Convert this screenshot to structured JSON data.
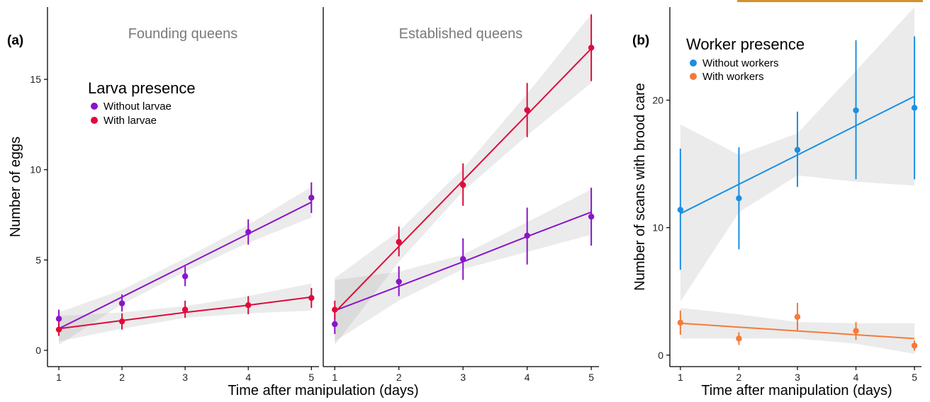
{
  "figure": {
    "accent_bar_color": "#d4912b"
  },
  "chart_data": [
    {
      "type": "line",
      "panel_label": "(a)",
      "facet_title": "Founding queens",
      "xlabel": "Time after manipulation (days)",
      "ylabel": "Number of eggs",
      "x": [
        1,
        2,
        3,
        4,
        5
      ],
      "xticks": [
        "1",
        "2",
        "3",
        "4",
        "5"
      ],
      "yticks": [
        "0",
        "5",
        "10",
        "15"
      ],
      "xlim": [
        0.82,
        5.12
      ],
      "ylim": [
        -0.9,
        19.0
      ],
      "grid": false,
      "legend": {
        "title": "Larva presence",
        "placement": "upper-left",
        "entries": [
          "Without larvae",
          "With larvae"
        ]
      },
      "series": [
        {
          "name": "Without larvae",
          "color": "#8a14c8",
          "mean": [
            1.75,
            2.6,
            4.1,
            6.55,
            8.45
          ],
          "lower": [
            1.25,
            2.15,
            3.55,
            5.85,
            7.6
          ],
          "upper": [
            2.25,
            3.1,
            4.65,
            7.25,
            9.3
          ],
          "fit": [
            1.2,
            2.95,
            4.7,
            6.45,
            8.2
          ],
          "ci_lower": [
            0.3,
            2.55,
            4.35,
            5.95,
            7.35
          ],
          "ci_upper": [
            2.1,
            3.35,
            5.1,
            6.95,
            9.05
          ]
        },
        {
          "name": "With larvae",
          "color": "#de0b3c",
          "mean": [
            1.15,
            1.6,
            2.25,
            2.5,
            2.9
          ],
          "lower": [
            0.8,
            1.15,
            1.8,
            2.0,
            2.35
          ],
          "upper": [
            1.55,
            2.05,
            2.75,
            3.0,
            3.45
          ],
          "fit": [
            1.2,
            1.65,
            2.1,
            2.5,
            2.95
          ],
          "ci_lower": [
            0.5,
            1.2,
            1.8,
            2.05,
            2.2
          ],
          "ci_upper": [
            1.9,
            2.1,
            2.45,
            3.0,
            3.7
          ]
        }
      ]
    },
    {
      "type": "line",
      "facet_title": "Established queens",
      "x": [
        1,
        2,
        3,
        4,
        5
      ],
      "xticks": [
        "1",
        "2",
        "3",
        "4",
        "5"
      ],
      "xlim": [
        0.82,
        5.12
      ],
      "ylim": [
        -0.9,
        19.0
      ],
      "grid": false,
      "series": [
        {
          "name": "Without larvae",
          "color": "#8a14c8",
          "mean": [
            1.45,
            3.8,
            5.05,
            6.35,
            7.4
          ],
          "lower": [
            0.9,
            3.0,
            3.9,
            4.75,
            5.8
          ],
          "upper": [
            2.0,
            4.65,
            6.2,
            7.9,
            9.0
          ],
          "fit": [
            2.2,
            3.55,
            4.9,
            6.3,
            7.65
          ],
          "ci_lower": [
            0.5,
            2.75,
            4.5,
            5.45,
            6.4
          ],
          "ci_upper": [
            3.9,
            4.35,
            5.3,
            7.1,
            8.9
          ]
        },
        {
          "name": "With larvae",
          "color": "#de0b3c",
          "mean": [
            2.25,
            6.0,
            9.15,
            13.3,
            16.75
          ],
          "lower": [
            1.75,
            5.2,
            8.0,
            11.8,
            14.9
          ],
          "upper": [
            2.75,
            6.85,
            10.35,
            14.8,
            18.6
          ],
          "fit": [
            2.1,
            5.75,
            9.4,
            13.05,
            16.7
          ],
          "ci_lower": [
            0.3,
            4.9,
            8.8,
            11.9,
            14.8
          ],
          "ci_upper": [
            4.0,
            6.6,
            10.05,
            14.2,
            18.6
          ]
        }
      ]
    },
    {
      "type": "line",
      "panel_label": "(b)",
      "xlabel": "Time after manipulation (days)",
      "ylabel": "Number of scans with brood care",
      "x": [
        1,
        2,
        3,
        4,
        5
      ],
      "xticks": [
        "1",
        "2",
        "3",
        "4",
        "5"
      ],
      "yticks": [
        "0",
        "10",
        "20"
      ],
      "xlim": [
        0.82,
        5.12
      ],
      "ylim": [
        -0.9,
        27.3
      ],
      "grid": false,
      "legend": {
        "title": "Worker presence",
        "placement": "upper-left",
        "entries": [
          "Without workers",
          "With workers"
        ]
      },
      "series": [
        {
          "name": "Without workers",
          "color": "#1a8fe3",
          "mean": [
            11.4,
            12.3,
            16.1,
            19.2,
            19.4
          ],
          "lower": [
            6.7,
            8.3,
            13.2,
            13.8,
            13.8
          ],
          "upper": [
            16.2,
            16.3,
            19.1,
            24.7,
            25.0
          ],
          "fit": [
            11.1,
            13.4,
            15.7,
            18.0,
            20.3
          ],
          "ci_lower": [
            4.2,
            11.2,
            14.1,
            13.6,
            13.3
          ],
          "ci_upper": [
            18.1,
            15.7,
            17.4,
            22.3,
            27.3
          ]
        },
        {
          "name": "With workers",
          "color": "#f47a3a",
          "mean": [
            2.55,
            1.3,
            3.0,
            1.9,
            0.75
          ],
          "lower": [
            1.6,
            0.8,
            1.9,
            1.2,
            0.35
          ],
          "upper": [
            3.5,
            1.8,
            4.1,
            2.6,
            1.15
          ],
          "fit": [
            2.5,
            2.2,
            1.9,
            1.6,
            1.3
          ],
          "ci_lower": [
            1.3,
            1.3,
            1.3,
            0.9,
            0.1
          ],
          "ci_upper": [
            3.7,
            3.2,
            2.6,
            2.5,
            2.5
          ]
        }
      ]
    }
  ]
}
